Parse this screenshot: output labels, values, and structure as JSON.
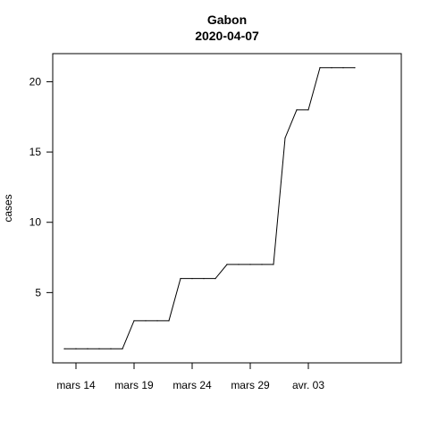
{
  "chart_data": {
    "type": "line",
    "title": "Gabon",
    "subtitle": "2020-04-07",
    "xlabel": "",
    "ylabel": "cases",
    "x_ticks": [
      {
        "date": "2020-03-14",
        "label": "mars 14"
      },
      {
        "date": "2020-03-19",
        "label": "mars 19"
      },
      {
        "date": "2020-03-24",
        "label": "mars 24"
      },
      {
        "date": "2020-03-29",
        "label": "mars 29"
      },
      {
        "date": "2020-04-03",
        "label": "avr. 03"
      }
    ],
    "y_ticks": [
      5,
      10,
      15,
      20
    ],
    "xlim": [
      "2020-03-12",
      "2020-04-11"
    ],
    "ylim": [
      0,
      22
    ],
    "grid": false,
    "color": "#000000",
    "x": [
      "2020-03-13",
      "2020-03-14",
      "2020-03-15",
      "2020-03-16",
      "2020-03-17",
      "2020-03-18",
      "2020-03-19",
      "2020-03-20",
      "2020-03-21",
      "2020-03-22",
      "2020-03-23",
      "2020-03-24",
      "2020-03-25",
      "2020-03-26",
      "2020-03-27",
      "2020-03-28",
      "2020-03-29",
      "2020-03-30",
      "2020-03-31",
      "2020-04-01",
      "2020-04-02",
      "2020-04-03",
      "2020-04-04",
      "2020-04-05",
      "2020-04-06",
      "2020-04-07"
    ],
    "y": [
      1,
      1,
      1,
      1,
      1,
      1,
      3,
      3,
      3,
      3,
      6,
      6,
      6,
      6,
      7,
      7,
      7,
      7,
      7,
      16,
      18,
      18,
      21,
      21,
      21,
      21
    ]
  }
}
